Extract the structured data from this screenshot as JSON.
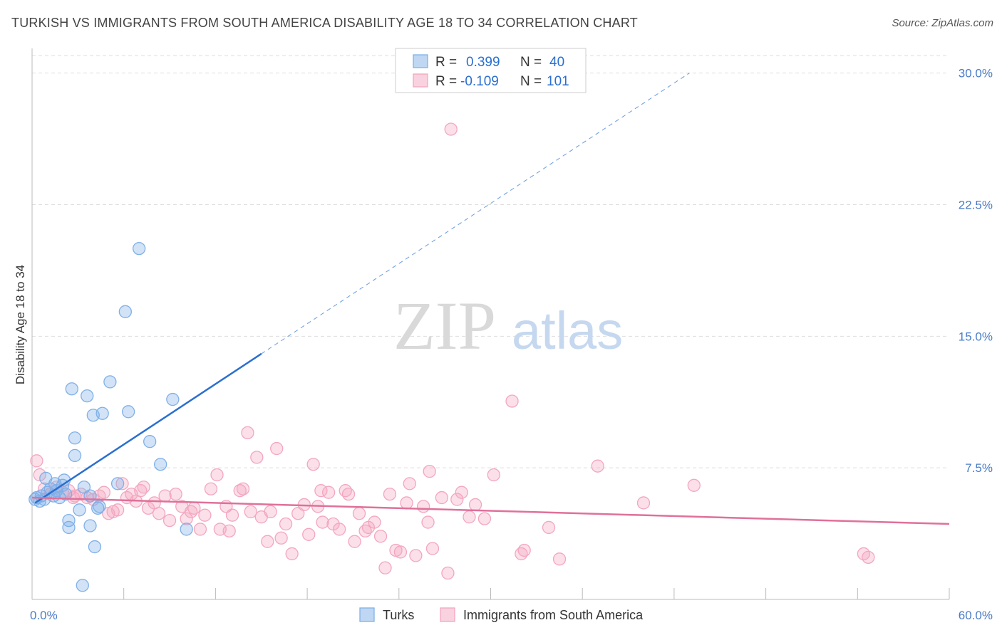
{
  "header": {
    "title": "TURKISH VS IMMIGRANTS FROM SOUTH AMERICA DISABILITY AGE 18 TO 34 CORRELATION CHART",
    "source": "Source: ZipAtlas.com"
  },
  "watermark": {
    "zip": "ZIP",
    "atlas": "atlas"
  },
  "colors": {
    "turks": "#7fb0e8",
    "turks_line": "#2a6fd0",
    "immigrants": "#f4a6bf",
    "immigrants_line": "#e0709a",
    "grid": "#dddddd",
    "tick_label": "#4a7cc7"
  },
  "legend_top": [
    {
      "r_label": "R =",
      "r_value": "0.399",
      "n_label": "N =",
      "n_value": "40"
    },
    {
      "r_label": "R =",
      "r_value": "-0.109",
      "n_label": "N =",
      "n_value": "101"
    }
  ],
  "legend_bottom": [
    "Turks",
    "Immigrants from South America"
  ],
  "chart_data": {
    "type": "scatter",
    "ylabel": "Disability Age 18 to 34",
    "xlim": [
      0,
      60
    ],
    "ylim": [
      0,
      31
    ],
    "x_tick_labels": [
      "0.0%",
      "60.0%"
    ],
    "y_ticks": [
      {
        "value": 7.5,
        "label": "7.5%"
      },
      {
        "value": 15,
        "label": "15.0%"
      },
      {
        "value": 22.5,
        "label": "22.5%"
      },
      {
        "value": 30,
        "label": "30.0%"
      }
    ],
    "legend_position": "top-center",
    "series": [
      {
        "name": "Turks",
        "points": [
          [
            0.2,
            5.7
          ],
          [
            0.3,
            5.8
          ],
          [
            0.5,
            5.6
          ],
          [
            0.6,
            5.9
          ],
          [
            0.8,
            5.7
          ],
          [
            1.0,
            6.1
          ],
          [
            1.2,
            6.3
          ],
          [
            1.4,
            5.9
          ],
          [
            1.6,
            6.2
          ],
          [
            1.8,
            5.8
          ],
          [
            2.0,
            6.5
          ],
          [
            2.1,
            6.8
          ],
          [
            2.2,
            6.0
          ],
          [
            2.4,
            4.5
          ],
          [
            2.4,
            4.1
          ],
          [
            2.6,
            12.0
          ],
          [
            2.8,
            8.2
          ],
          [
            2.8,
            9.2
          ],
          [
            3.1,
            5.1
          ],
          [
            3.4,
            6.4
          ],
          [
            3.6,
            11.6
          ],
          [
            3.8,
            5.9
          ],
          [
            3.8,
            4.2
          ],
          [
            4.0,
            10.5
          ],
          [
            4.1,
            3.0
          ],
          [
            4.3,
            5.2
          ],
          [
            4.4,
            5.3
          ],
          [
            4.6,
            10.6
          ],
          [
            5.1,
            12.4
          ],
          [
            5.6,
            6.6
          ],
          [
            6.1,
            16.4
          ],
          [
            6.3,
            10.7
          ],
          [
            7.0,
            20.0
          ],
          [
            7.7,
            9.0
          ],
          [
            8.4,
            7.7
          ],
          [
            9.2,
            11.4
          ],
          [
            10.1,
            4.0
          ],
          [
            0.9,
            6.9
          ],
          [
            1.5,
            6.6
          ],
          [
            3.3,
            0.8
          ]
        ],
        "trend": {
          "x_start": 0.2,
          "y_start": 5.5,
          "x_solid_end": 15.0,
          "y_solid_end": 14.0,
          "x_dash_end": 43.0,
          "y_dash_end": 30.0
        }
      },
      {
        "name": "Immigrants from South America",
        "points": [
          [
            0.3,
            7.9
          ],
          [
            0.5,
            7.1
          ],
          [
            0.8,
            6.3
          ],
          [
            1.2,
            6.0
          ],
          [
            1.6,
            6.4
          ],
          [
            2.0,
            6.1
          ],
          [
            2.4,
            6.2
          ],
          [
            2.8,
            5.9
          ],
          [
            3.2,
            6.0
          ],
          [
            3.6,
            5.8
          ],
          [
            4.0,
            5.7
          ],
          [
            4.4,
            5.9
          ],
          [
            4.7,
            6.1
          ],
          [
            5.0,
            4.9
          ],
          [
            5.3,
            5.0
          ],
          [
            5.6,
            5.1
          ],
          [
            5.9,
            6.6
          ],
          [
            6.2,
            5.8
          ],
          [
            6.8,
            5.6
          ],
          [
            7.1,
            6.2
          ],
          [
            7.3,
            6.4
          ],
          [
            7.6,
            5.2
          ],
          [
            8.0,
            5.5
          ],
          [
            8.3,
            4.9
          ],
          [
            8.7,
            5.9
          ],
          [
            9.0,
            4.5
          ],
          [
            9.4,
            6.0
          ],
          [
            9.8,
            5.3
          ],
          [
            10.1,
            4.6
          ],
          [
            10.4,
            5.0
          ],
          [
            10.6,
            5.2
          ],
          [
            11.0,
            4.0
          ],
          [
            11.3,
            4.8
          ],
          [
            11.7,
            6.3
          ],
          [
            12.1,
            7.1
          ],
          [
            12.3,
            4.0
          ],
          [
            12.7,
            5.3
          ],
          [
            13.1,
            4.8
          ],
          [
            13.6,
            6.2
          ],
          [
            13.8,
            6.3
          ],
          [
            14.1,
            9.5
          ],
          [
            14.3,
            5.0
          ],
          [
            14.7,
            8.1
          ],
          [
            15.0,
            4.7
          ],
          [
            15.4,
            3.3
          ],
          [
            15.6,
            5.0
          ],
          [
            16.0,
            8.6
          ],
          [
            16.3,
            3.5
          ],
          [
            16.6,
            4.3
          ],
          [
            17.0,
            2.6
          ],
          [
            17.4,
            4.9
          ],
          [
            17.8,
            5.4
          ],
          [
            18.1,
            3.7
          ],
          [
            18.4,
            7.7
          ],
          [
            18.7,
            5.3
          ],
          [
            19.0,
            4.4
          ],
          [
            19.4,
            6.1
          ],
          [
            19.7,
            4.3
          ],
          [
            20.1,
            4.0
          ],
          [
            20.5,
            6.2
          ],
          [
            20.7,
            6.0
          ],
          [
            21.1,
            3.3
          ],
          [
            21.4,
            4.9
          ],
          [
            21.8,
            3.9
          ],
          [
            22.0,
            4.1
          ],
          [
            22.4,
            4.4
          ],
          [
            22.8,
            3.6
          ],
          [
            23.1,
            1.8
          ],
          [
            23.4,
            6.0
          ],
          [
            23.8,
            2.8
          ],
          [
            24.1,
            2.7
          ],
          [
            24.5,
            5.5
          ],
          [
            24.7,
            6.6
          ],
          [
            25.1,
            2.5
          ],
          [
            25.6,
            5.3
          ],
          [
            26.0,
            7.3
          ],
          [
            26.2,
            2.9
          ],
          [
            26.8,
            5.8
          ],
          [
            27.2,
            1.5
          ],
          [
            27.4,
            26.8
          ],
          [
            27.8,
            5.7
          ],
          [
            28.1,
            6.1
          ],
          [
            28.6,
            4.7
          ],
          [
            29.0,
            5.4
          ],
          [
            29.6,
            4.6
          ],
          [
            30.2,
            7.1
          ],
          [
            31.4,
            11.3
          ],
          [
            32.0,
            2.6
          ],
          [
            32.2,
            2.8
          ],
          [
            33.8,
            4.1
          ],
          [
            34.5,
            2.3
          ],
          [
            37.0,
            7.6
          ],
          [
            40.0,
            5.5
          ],
          [
            43.3,
            6.5
          ],
          [
            54.4,
            2.6
          ],
          [
            54.7,
            2.4
          ],
          [
            2.7,
            5.8
          ],
          [
            6.5,
            6.0
          ],
          [
            12.9,
            3.9
          ],
          [
            18.9,
            6.2
          ],
          [
            25.9,
            4.4
          ]
        ],
        "trend": {
          "x_start": 0.0,
          "y_start": 5.8,
          "x_end": 60.0,
          "y_end": 4.3
        }
      }
    ]
  }
}
